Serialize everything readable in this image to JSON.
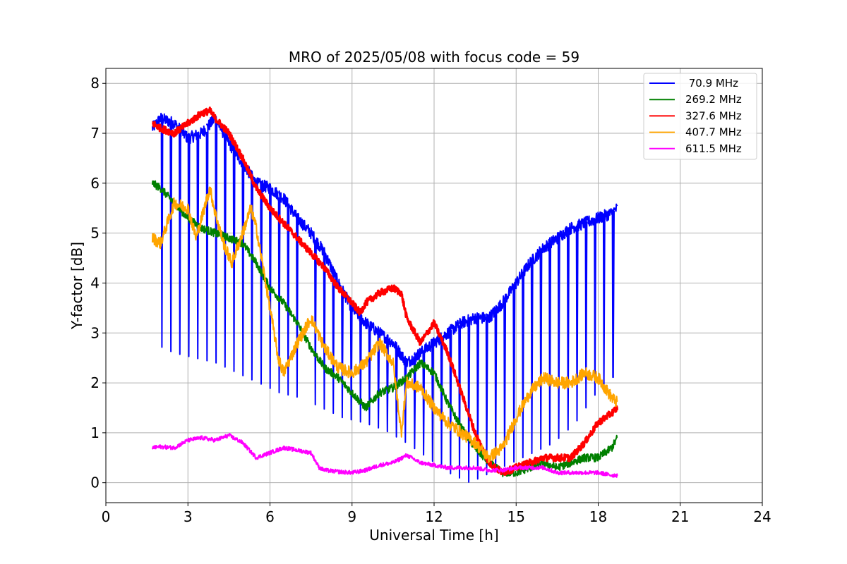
{
  "chart_data": {
    "type": "line",
    "title": "MRO of 2025/05/08 with focus code = 59",
    "xlabel": "Universal Time [h]",
    "ylabel": "Y-factor [dB]",
    "xlim": [
      0,
      24
    ],
    "ylim": [
      -0.4,
      8.3
    ],
    "xticks": [
      0,
      3,
      6,
      9,
      12,
      15,
      18,
      21,
      24
    ],
    "yticks": [
      0,
      1,
      2,
      3,
      4,
      5,
      6,
      7,
      8
    ],
    "grid": true,
    "legend_position": "top-right",
    "series": [
      {
        "name": " 70.9 MHz",
        "color": "#0000ff",
        "x": [
          1.7,
          2.0,
          2.5,
          3.0,
          3.5,
          4.0,
          4.5,
          5.0,
          5.5,
          6.0,
          6.5,
          7.0,
          7.5,
          8.0,
          8.5,
          9.0,
          9.5,
          10.0,
          10.5,
          11.0,
          11.5,
          12.0,
          12.5,
          13.0,
          13.5,
          14.0,
          14.5,
          15.0,
          15.5,
          16.0,
          16.5,
          17.0,
          17.5,
          18.0,
          18.5,
          18.7
        ],
        "y": [
          7.1,
          7.3,
          7.2,
          6.9,
          7.0,
          7.3,
          6.8,
          6.4,
          6.0,
          5.9,
          5.7,
          5.3,
          5.0,
          4.6,
          4.0,
          3.5,
          3.2,
          3.0,
          2.8,
          2.4,
          2.6,
          2.8,
          3.0,
          3.2,
          3.3,
          3.3,
          3.6,
          4.0,
          4.4,
          4.7,
          4.9,
          5.1,
          5.2,
          5.3,
          5.4,
          5.5
        ],
        "dip_values": [
          2.8,
          2.6,
          2.5,
          2.4,
          2.2,
          2.0,
          1.8,
          1.7,
          1.5,
          1.3,
          1.2,
          1.05,
          0.8,
          0.5,
          0.2,
          0.0,
          0.2,
          0.4,
          0.6,
          0.8,
          1.2,
          1.8,
          2.2
        ]
      },
      {
        "name": "269.2 MHz",
        "color": "#008000",
        "x": [
          1.7,
          2.0,
          2.5,
          3.0,
          3.5,
          4.0,
          4.5,
          5.0,
          5.5,
          6.0,
          6.5,
          7.0,
          7.5,
          8.0,
          8.5,
          9.0,
          9.5,
          10.0,
          10.5,
          11.0,
          11.5,
          12.0,
          12.5,
          13.0,
          13.5,
          14.0,
          14.5,
          15.0,
          15.5,
          16.0,
          16.5,
          17.0,
          17.5,
          18.0,
          18.5,
          18.7
        ],
        "y": [
          6.0,
          5.9,
          5.6,
          5.3,
          5.1,
          5.0,
          4.9,
          4.8,
          4.4,
          3.9,
          3.6,
          3.2,
          2.7,
          2.3,
          2.1,
          1.8,
          1.5,
          1.8,
          1.9,
          2.1,
          2.4,
          2.2,
          1.6,
          1.1,
          0.7,
          0.4,
          0.2,
          0.2,
          0.3,
          0.4,
          0.3,
          0.4,
          0.5,
          0.5,
          0.7,
          0.9
        ]
      },
      {
        "name": "327.6 MHz",
        "color": "#ff0000",
        "x": [
          1.7,
          2.0,
          2.5,
          3.0,
          3.5,
          3.8,
          4.0,
          4.5,
          5.0,
          5.5,
          6.0,
          6.5,
          7.0,
          7.5,
          8.0,
          8.5,
          9.0,
          9.3,
          9.5,
          10.0,
          10.5,
          10.8,
          11.0,
          11.5,
          12.0,
          12.5,
          13.0,
          13.5,
          14.0,
          14.5,
          15.0,
          15.5,
          16.0,
          16.5,
          17.0,
          17.5,
          18.0,
          18.5,
          18.7
        ],
        "y": [
          7.2,
          7.1,
          7.0,
          7.2,
          7.4,
          7.45,
          7.3,
          7.0,
          6.5,
          5.9,
          5.5,
          5.2,
          4.9,
          4.6,
          4.3,
          3.9,
          3.6,
          3.4,
          3.6,
          3.8,
          3.9,
          3.8,
          3.3,
          2.8,
          3.2,
          2.6,
          1.8,
          1.0,
          0.4,
          0.2,
          0.3,
          0.4,
          0.5,
          0.5,
          0.5,
          0.8,
          1.2,
          1.4,
          1.5
        ]
      },
      {
        "name": "407.7 MHz",
        "color": "#ffa500",
        "x": [
          1.7,
          2.0,
          2.5,
          3.0,
          3.3,
          3.5,
          3.8,
          4.0,
          4.3,
          4.6,
          5.0,
          5.3,
          5.5,
          6.0,
          6.3,
          6.5,
          7.0,
          7.5,
          8.0,
          8.5,
          9.0,
          9.5,
          10.0,
          10.5,
          10.8,
          11.0,
          11.5,
          12.0,
          12.5,
          13.0,
          13.5,
          14.0,
          14.5,
          15.0,
          15.5,
          16.0,
          16.5,
          17.0,
          17.5,
          18.0,
          18.5,
          18.7
        ],
        "y": [
          4.9,
          4.8,
          5.6,
          5.5,
          4.9,
          5.3,
          5.9,
          5.4,
          4.8,
          4.4,
          5.0,
          5.5,
          5.1,
          3.5,
          2.5,
          2.2,
          2.8,
          3.3,
          2.7,
          2.3,
          2.2,
          2.4,
          2.8,
          2.4,
          1.0,
          2.0,
          1.9,
          1.5,
          1.2,
          1.0,
          0.8,
          0.5,
          0.7,
          1.3,
          1.8,
          2.1,
          2.0,
          2.0,
          2.2,
          2.1,
          1.7,
          1.6
        ]
      },
      {
        "name": "611.5 MHz",
        "color": "#ff00ff",
        "x": [
          1.7,
          2.0,
          2.5,
          3.0,
          3.5,
          4.0,
          4.5,
          5.0,
          5.5,
          6.0,
          6.5,
          7.0,
          7.5,
          7.8,
          8.0,
          8.5,
          9.0,
          9.5,
          10.0,
          10.5,
          11.0,
          11.5,
          12.0,
          12.5,
          13.0,
          13.5,
          14.0,
          14.5,
          15.0,
          15.5,
          16.0,
          16.5,
          17.0,
          17.5,
          18.0,
          18.5,
          18.7
        ],
        "y": [
          0.7,
          0.72,
          0.7,
          0.85,
          0.9,
          0.85,
          0.95,
          0.8,
          0.5,
          0.6,
          0.7,
          0.65,
          0.6,
          0.3,
          0.25,
          0.22,
          0.2,
          0.25,
          0.35,
          0.4,
          0.55,
          0.4,
          0.35,
          0.3,
          0.3,
          0.3,
          0.25,
          0.25,
          0.3,
          0.3,
          0.3,
          0.2,
          0.2,
          0.2,
          0.2,
          0.15,
          0.15
        ]
      }
    ]
  }
}
